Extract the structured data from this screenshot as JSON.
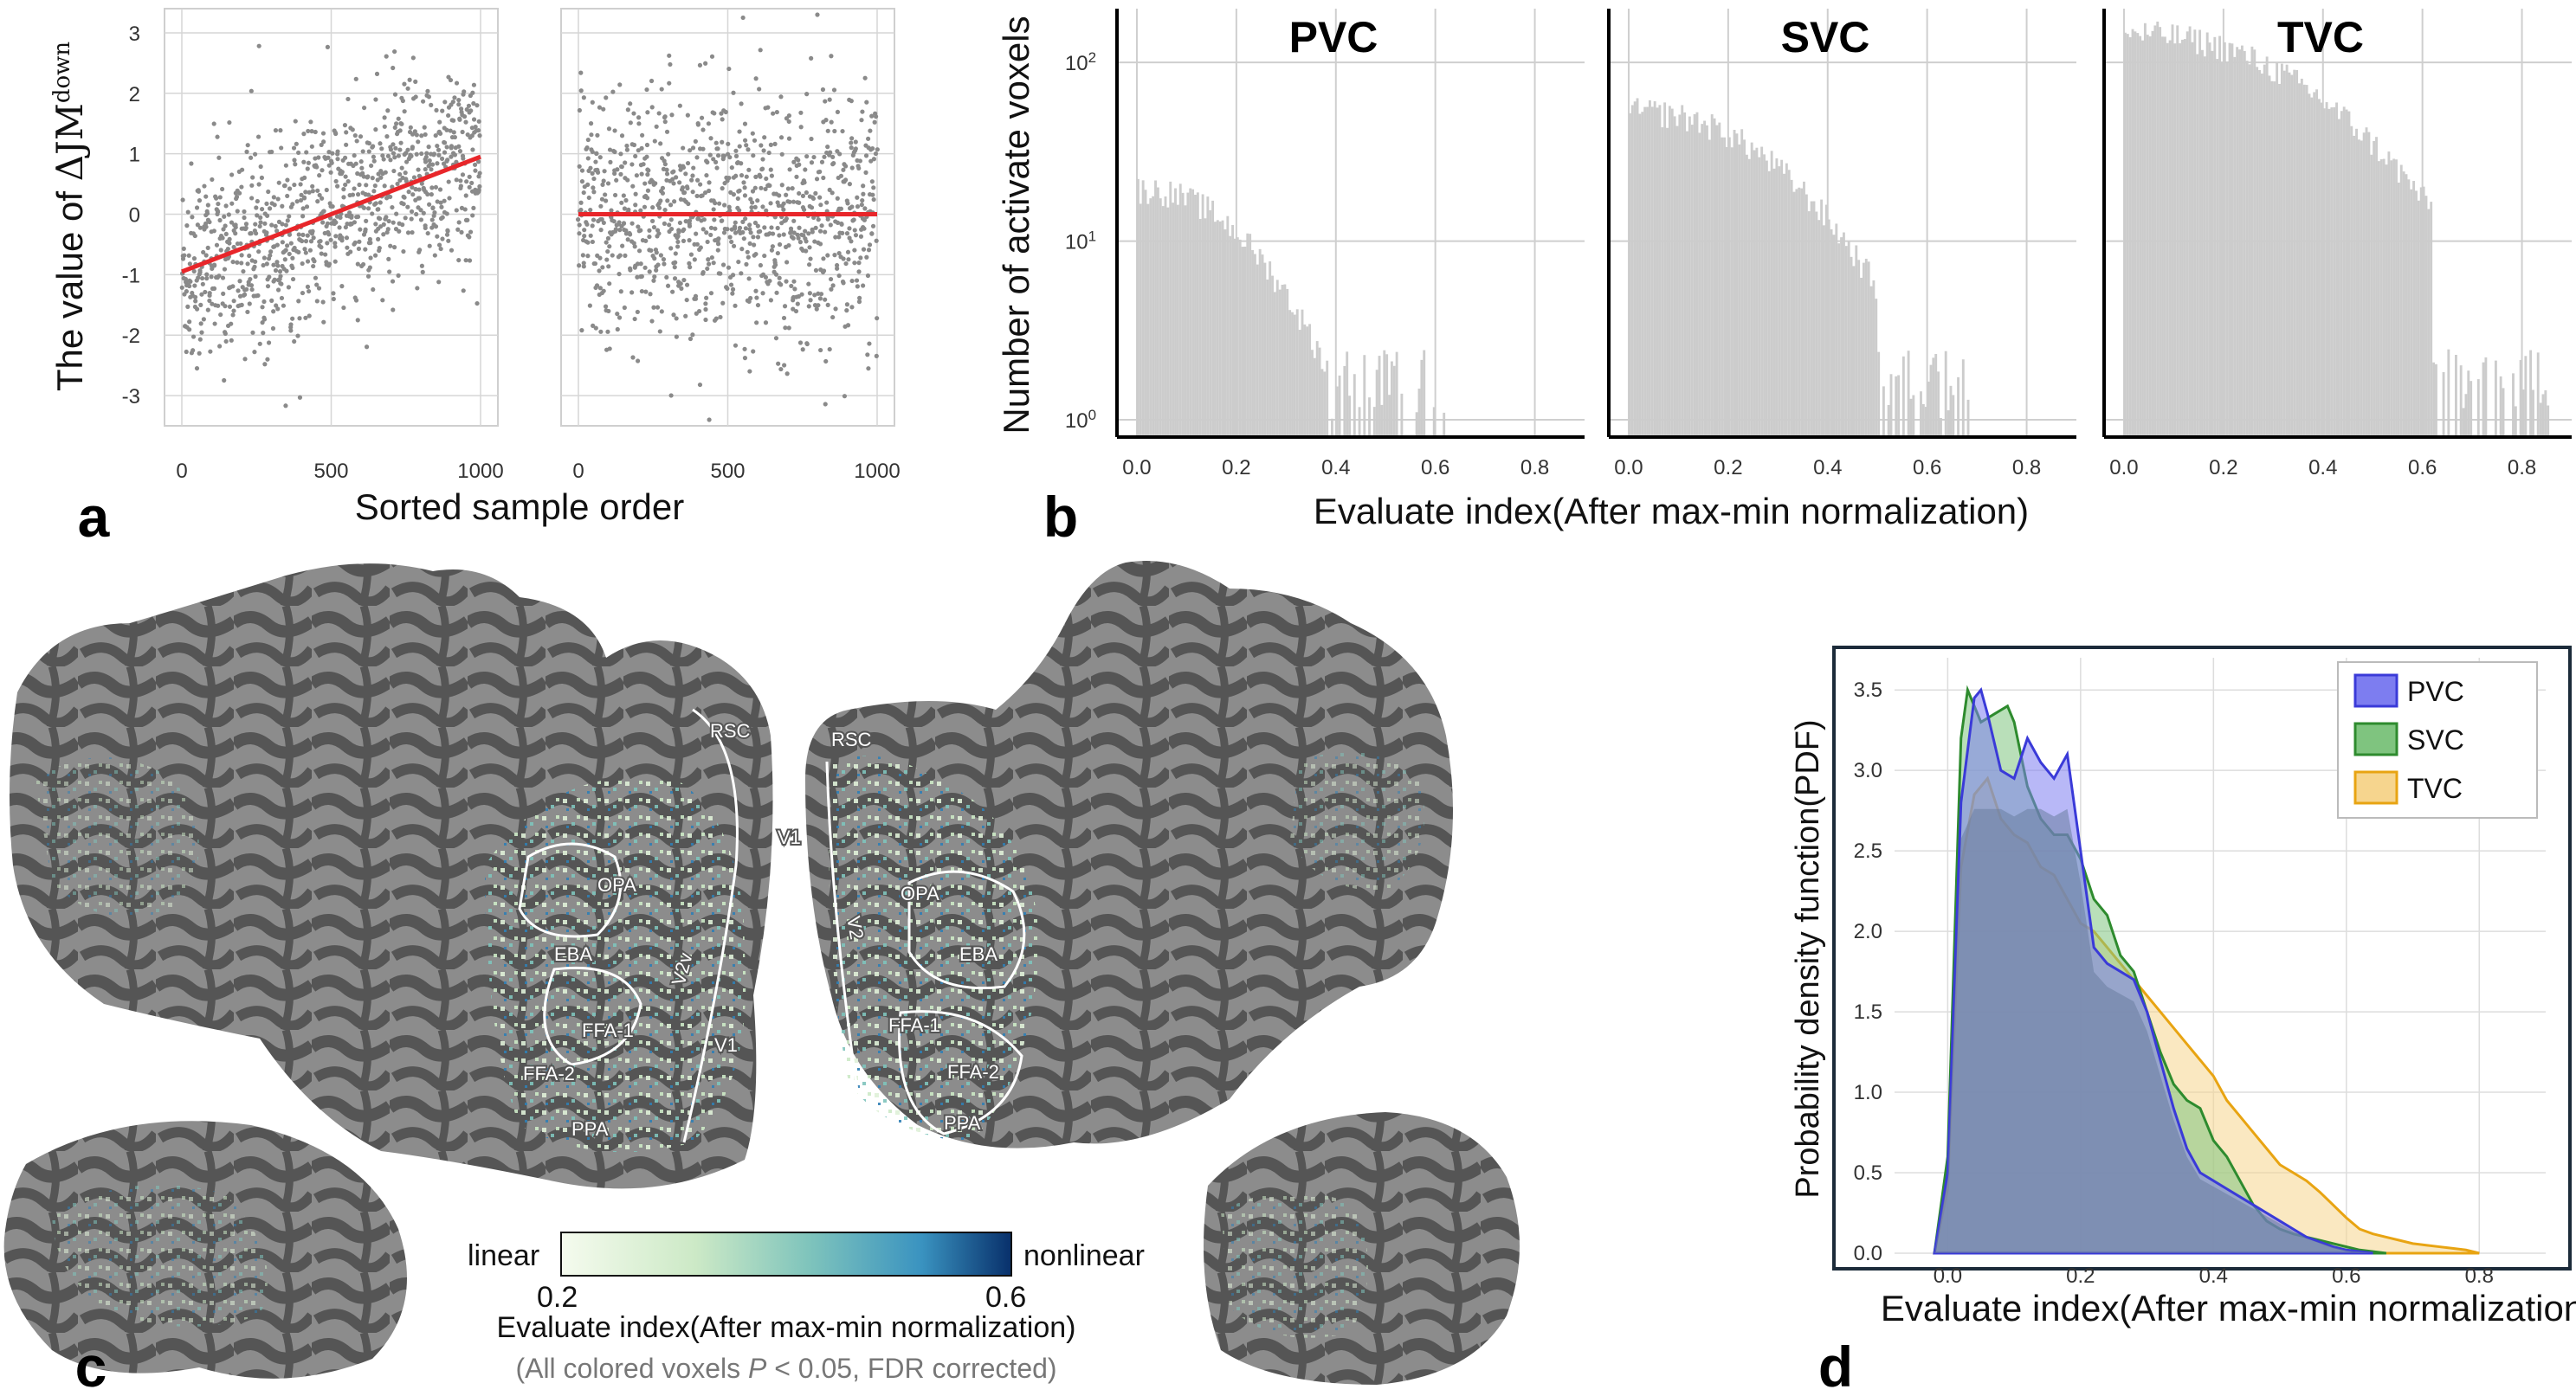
{
  "panel_labels": {
    "a": "a",
    "b": "b",
    "c": "c",
    "d": "d"
  },
  "chart_data": [
    {
      "id": "a-left",
      "type": "scatter",
      "ylabel_prefix": "The value of ",
      "ylabel_math": "ΔJM",
      "ylabel_sup": "down",
      "xlabel": "Sorted sample order",
      "xlim": [
        0,
        1000
      ],
      "ylim": [
        -3.5,
        3.4
      ],
      "xticks": [
        0,
        500,
        1000
      ],
      "yticks": [
        -3,
        -2,
        -1,
        0,
        1,
        2,
        3
      ],
      "grid": true,
      "points": "~1000 grey points with trend increasing from ~-1 to ~1",
      "fit_line": {
        "x": [
          0,
          1000
        ],
        "y": [
          -0.95,
          0.95
        ],
        "color": "#e8262a"
      }
    },
    {
      "id": "a-right",
      "type": "scatter",
      "xlim": [
        0,
        1000
      ],
      "ylim": [
        -3.5,
        3.4
      ],
      "xticks": [
        0,
        500,
        1000
      ],
      "grid": true,
      "points": "~1000 grey points centred at 0",
      "fit_line": {
        "x": [
          0,
          1000
        ],
        "y": [
          0,
          0
        ],
        "color": "#e8262a"
      }
    },
    {
      "id": "b",
      "type": "bar",
      "ylabel": "Number of activate voxels",
      "xlabel": "Evaluate index(After max-min normalization)",
      "yscale": "log",
      "ytick_base": "10",
      "ytick_exps": [
        "0",
        "1",
        "2"
      ],
      "xticks": [
        "0.0",
        "0.2",
        "0.4",
        "0.6",
        "0.8"
      ],
      "xlim": [
        -0.04,
        0.9
      ],
      "bar_color": "#cccccc",
      "subplots": [
        {
          "title": "PVC",
          "max_x": 0.62,
          "start": 20,
          "end_val": 1,
          "cut": 0.38
        },
        {
          "title": "SVC",
          "max_x": 0.69,
          "start": 55,
          "end_val": 1,
          "cut": 0.5
        },
        {
          "title": "TVC",
          "max_x": 0.86,
          "start": 150,
          "end_val": 1,
          "cut": 0.62
        }
      ]
    },
    {
      "id": "d",
      "type": "area",
      "ylabel": "Probability density function(PDF)",
      "xlabel": "Evaluate index(After max-min normalization)",
      "xlim": [
        -0.08,
        0.9
      ],
      "ylim": [
        0,
        3.7
      ],
      "xticks": [
        "0.0",
        "0.2",
        "0.4",
        "0.6",
        "0.8"
      ],
      "yticks": [
        "0.0",
        "0.5",
        "1.0",
        "1.5",
        "2.0",
        "2.5",
        "3.0",
        "3.5"
      ],
      "grid": true,
      "legend": "top-right",
      "series": [
        {
          "name": "PVC",
          "color": "#3a3ad8",
          "fill": "#7d7df0",
          "x": [
            -0.02,
            0.0,
            0.02,
            0.04,
            0.05,
            0.06,
            0.08,
            0.1,
            0.12,
            0.14,
            0.16,
            0.18,
            0.2,
            0.22,
            0.24,
            0.26,
            0.28,
            0.3,
            0.32,
            0.34,
            0.36,
            0.38,
            0.4,
            0.42,
            0.44,
            0.46,
            0.48,
            0.5,
            0.52,
            0.54,
            0.56,
            0.58,
            0.6,
            0.62,
            0.64
          ],
          "y": [
            0,
            0.5,
            2.8,
            3.45,
            3.5,
            3.35,
            3.0,
            2.95,
            3.2,
            3.05,
            2.95,
            3.1,
            2.5,
            1.9,
            1.8,
            1.75,
            1.7,
            1.5,
            1.2,
            0.9,
            0.65,
            0.5,
            0.45,
            0.4,
            0.35,
            0.3,
            0.25,
            0.2,
            0.15,
            0.1,
            0.07,
            0.04,
            0.02,
            0.01,
            0
          ]
        },
        {
          "name": "SVC",
          "color": "#2e8b2e",
          "fill": "#7fc47f",
          "x": [
            -0.02,
            0.0,
            0.02,
            0.03,
            0.05,
            0.07,
            0.09,
            0.1,
            0.12,
            0.14,
            0.16,
            0.18,
            0.2,
            0.22,
            0.24,
            0.26,
            0.28,
            0.3,
            0.32,
            0.34,
            0.36,
            0.38,
            0.4,
            0.42,
            0.44,
            0.46,
            0.48,
            0.5,
            0.52,
            0.54,
            0.56,
            0.58,
            0.6,
            0.62,
            0.64,
            0.66
          ],
          "y": [
            0,
            0.6,
            3.2,
            3.5,
            3.3,
            3.35,
            3.4,
            3.3,
            2.9,
            2.7,
            2.6,
            2.6,
            2.45,
            2.2,
            2.1,
            1.85,
            1.75,
            1.5,
            1.25,
            1.05,
            0.95,
            0.9,
            0.7,
            0.6,
            0.45,
            0.3,
            0.2,
            0.15,
            0.12,
            0.1,
            0.08,
            0.06,
            0.04,
            0.02,
            0.01,
            0
          ]
        },
        {
          "name": "TVC",
          "color": "#e8a412",
          "fill": "#f6d58e",
          "x": [
            -0.02,
            0.0,
            0.02,
            0.04,
            0.06,
            0.08,
            0.1,
            0.12,
            0.14,
            0.16,
            0.18,
            0.2,
            0.22,
            0.24,
            0.26,
            0.28,
            0.3,
            0.32,
            0.34,
            0.36,
            0.38,
            0.4,
            0.42,
            0.44,
            0.46,
            0.48,
            0.5,
            0.52,
            0.54,
            0.56,
            0.58,
            0.6,
            0.62,
            0.64,
            0.66,
            0.68,
            0.7,
            0.72,
            0.74,
            0.76,
            0.78,
            0.8
          ],
          "y": [
            0,
            0.4,
            2.4,
            2.85,
            2.95,
            2.7,
            2.6,
            2.55,
            2.4,
            2.35,
            2.2,
            2.05,
            2.0,
            1.9,
            1.8,
            1.7,
            1.6,
            1.5,
            1.4,
            1.3,
            1.2,
            1.1,
            0.95,
            0.85,
            0.75,
            0.65,
            0.55,
            0.5,
            0.45,
            0.38,
            0.3,
            0.22,
            0.15,
            0.12,
            0.1,
            0.08,
            0.06,
            0.05,
            0.04,
            0.03,
            0.02,
            0
          ]
        }
      ],
      "overlap_fill": "#6a7da0"
    }
  ],
  "brain_map": {
    "roi_left": [
      "RSC",
      "OPA",
      "EBA",
      "V2v",
      "V1",
      "FFA-1",
      "FFA-2",
      "PPA",
      "V1"
    ],
    "roi_right": [
      "RSC",
      "V1",
      "V2",
      "OPA",
      "EBA",
      "FFA-1",
      "FFA-2",
      "PPA"
    ],
    "colorbar": {
      "left_label": "linear",
      "right_label": "nonlinear",
      "min": "0.2",
      "max": "0.6",
      "colors": [
        "#f5fbee",
        "#cce9c6",
        "#7fc4bc",
        "#3a93c0",
        "#08306b"
      ]
    },
    "caption": "Evaluate index(After max-min normalization)",
    "note_prefix": "(All colored voxels ",
    "note_italic": "P",
    "note_suffix": " < 0.05, FDR corrected)"
  }
}
